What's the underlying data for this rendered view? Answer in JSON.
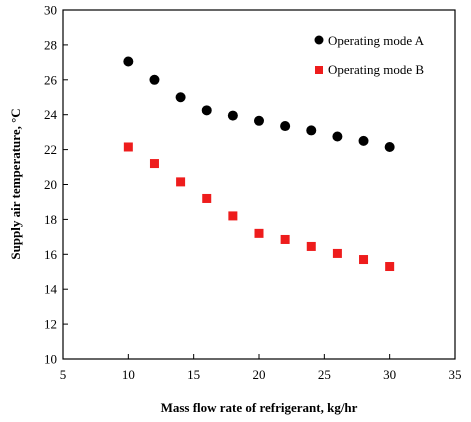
{
  "chart_data": {
    "type": "scatter",
    "xlabel": "Mass flow rate of refrigerant, kg/hr",
    "ylabel": "Supply air temperature, °C",
    "xlim": [
      5,
      35
    ],
    "ylim": [
      10,
      30
    ],
    "xticks": [
      5,
      10,
      15,
      20,
      25,
      30,
      35
    ],
    "yticks": [
      10,
      12,
      14,
      16,
      18,
      20,
      22,
      24,
      26,
      28,
      30
    ],
    "grid": false,
    "legend_position": "top-right",
    "series": [
      {
        "name": "Operating mode A",
        "marker": "circle",
        "color": "#000000",
        "x": [
          10,
          12,
          14,
          16,
          18,
          20,
          22,
          24,
          26,
          28,
          30
        ],
        "y": [
          27.05,
          26.0,
          25.0,
          24.25,
          23.95,
          23.65,
          23.35,
          23.1,
          22.75,
          22.5,
          22.15
        ]
      },
      {
        "name": "Operating mode B",
        "marker": "square",
        "color": "#ee1c1c",
        "x": [
          10,
          12,
          14,
          16,
          18,
          20,
          22,
          24,
          26,
          28,
          30
        ],
        "y": [
          22.15,
          21.2,
          20.15,
          19.2,
          18.2,
          17.2,
          16.85,
          16.45,
          16.05,
          15.7,
          15.3
        ]
      }
    ]
  }
}
